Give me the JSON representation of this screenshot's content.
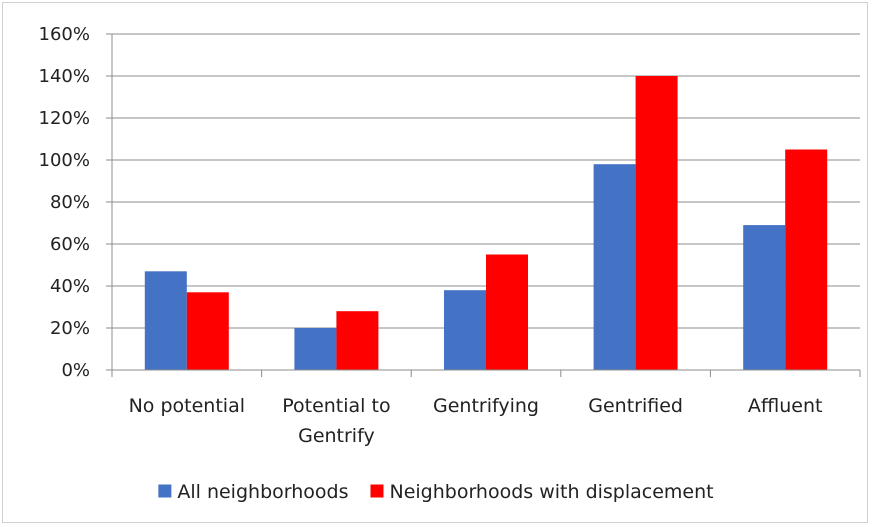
{
  "chart_data": {
    "type": "bar",
    "categories": [
      [
        "No potential"
      ],
      [
        "Potential to",
        "Gentrify"
      ],
      [
        "Gentrifying"
      ],
      [
        "Gentrified"
      ],
      [
        "Affluent"
      ]
    ],
    "series": [
      {
        "name": "All neighborhoods",
        "color": "#4472c4",
        "values": [
          47,
          20,
          38,
          98,
          69
        ]
      },
      {
        "name": "Neighborhoods with displacement",
        "color": "#ff0000",
        "values": [
          37,
          28,
          55,
          140,
          105
        ]
      }
    ],
    "ylim": [
      0,
      160
    ],
    "yticks": [
      0,
      20,
      40,
      60,
      80,
      100,
      120,
      140,
      160
    ],
    "ytick_format": "percent",
    "grid": true,
    "legend_position": "bottom"
  }
}
